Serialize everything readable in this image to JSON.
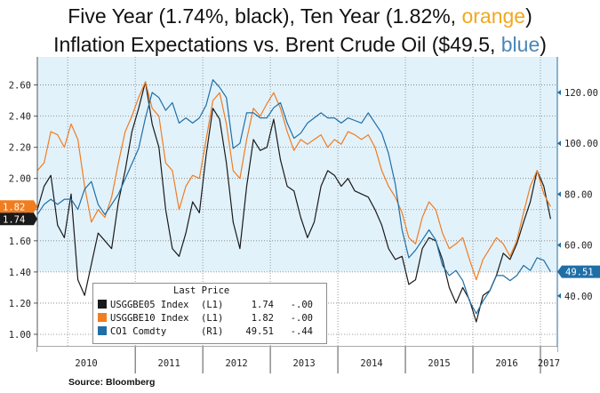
{
  "title": {
    "line1_pre": "Five Year (1.74%, black), Ten Year (1.82%, ",
    "line1_orange": "orange",
    "line1_post": ")",
    "line2_pre": "Inflation Expectations  vs. Brent Crude Oil ($49.5, ",
    "line2_blue": "blue",
    "line2_post": ")"
  },
  "colors": {
    "black": "#1a1a1a",
    "orange": "#f07d20",
    "blue": "#1f6fa6",
    "plot_bg": "#e2f2fb",
    "grid": "#7f7f7f",
    "title_orange": "#f0a820",
    "title_blue": "#4a86b8"
  },
  "source": "Source: Bloomberg",
  "legend": {
    "title": "Last Price",
    "rows": [
      {
        "name": "USGGBE05 Index",
        "axis": "(L1)",
        "last": "1.74",
        "change": "-.00",
        "color": "black"
      },
      {
        "name": "USGGBE10 Index",
        "axis": "(L1)",
        "last": "1.82",
        "change": "-.00",
        "color": "orange"
      },
      {
        "name": "CO1 Comdty",
        "axis": "(R1)",
        "last": "49.51",
        "change": "-.44",
        "color": "blue"
      }
    ]
  },
  "chart_data": {
    "type": "line",
    "x_labels": [
      "2010",
      "2011",
      "2012",
      "2013",
      "2014",
      "2015",
      "2016",
      "2017"
    ],
    "y_left": {
      "ticks": [
        "1.00",
        "1.20",
        "1.40",
        "1.60",
        "1.80",
        "2.00",
        "2.20",
        "2.40",
        "2.60"
      ],
      "range": [
        0.92,
        2.78
      ]
    },
    "y_right": {
      "ticks": [
        "40.00",
        "60.00",
        "80.00",
        "100.00",
        "120.00"
      ],
      "range": [
        20,
        134
      ]
    },
    "last_value_tags": [
      {
        "text": "1.82",
        "axis": "left",
        "value": 1.82,
        "color": "orange"
      },
      {
        "text": "1.74",
        "axis": "left",
        "value": 1.74,
        "color": "black"
      },
      {
        "text": "49.51",
        "axis": "right",
        "value": 49.51,
        "color": "blue"
      }
    ],
    "x_range": [
      2009.55,
      2017.25
    ],
    "series": [
      {
        "name": "USGGBE05 Index",
        "color": "black",
        "axis": "left",
        "x": [
          2009.55,
          2009.65,
          2009.75,
          2009.85,
          2009.95,
          2010.05,
          2010.15,
          2010.25,
          2010.35,
          2010.45,
          2010.55,
          2010.65,
          2010.75,
          2010.85,
          2010.95,
          2011.05,
          2011.15,
          2011.25,
          2011.35,
          2011.45,
          2011.55,
          2011.65,
          2011.75,
          2011.85,
          2011.95,
          2012.05,
          2012.15,
          2012.25,
          2012.35,
          2012.45,
          2012.55,
          2012.65,
          2012.75,
          2012.85,
          2012.95,
          2013.05,
          2013.15,
          2013.25,
          2013.35,
          2013.45,
          2013.55,
          2013.65,
          2013.75,
          2013.85,
          2013.95,
          2014.05,
          2014.15,
          2014.25,
          2014.35,
          2014.45,
          2014.55,
          2014.65,
          2014.75,
          2014.85,
          2014.95,
          2015.05,
          2015.15,
          2015.25,
          2015.35,
          2015.45,
          2015.55,
          2015.65,
          2015.75,
          2015.85,
          2015.95,
          2016.05,
          2016.15,
          2016.25,
          2016.35,
          2016.45,
          2016.55,
          2016.65,
          2016.75,
          2016.85,
          2016.95,
          2017.05,
          2017.15
        ],
        "values": [
          1.8,
          1.95,
          2.02,
          1.7,
          1.62,
          1.9,
          1.35,
          1.25,
          1.45,
          1.65,
          1.6,
          1.55,
          1.85,
          2.05,
          2.3,
          2.45,
          2.62,
          2.35,
          2.2,
          1.8,
          1.55,
          1.5,
          1.65,
          1.85,
          1.78,
          2.15,
          2.45,
          2.38,
          2.1,
          1.72,
          1.55,
          1.95,
          2.25,
          2.18,
          2.2,
          2.38,
          2.12,
          1.95,
          1.92,
          1.75,
          1.62,
          1.72,
          1.95,
          2.05,
          2.02,
          1.95,
          2.0,
          1.92,
          1.9,
          1.88,
          1.8,
          1.7,
          1.55,
          1.48,
          1.5,
          1.32,
          1.35,
          1.55,
          1.62,
          1.6,
          1.48,
          1.3,
          1.2,
          1.3,
          1.22,
          1.08,
          1.25,
          1.28,
          1.38,
          1.52,
          1.48,
          1.58,
          1.72,
          1.85,
          2.05,
          1.95,
          1.74
        ]
      },
      {
        "name": "USGGBE10 Index",
        "color": "orange",
        "axis": "left",
        "x": [
          2009.55,
          2009.65,
          2009.75,
          2009.85,
          2009.95,
          2010.05,
          2010.15,
          2010.25,
          2010.35,
          2010.45,
          2010.55,
          2010.65,
          2010.75,
          2010.85,
          2010.95,
          2011.05,
          2011.15,
          2011.25,
          2011.35,
          2011.45,
          2011.55,
          2011.65,
          2011.75,
          2011.85,
          2011.95,
          2012.05,
          2012.15,
          2012.25,
          2012.35,
          2012.45,
          2012.55,
          2012.65,
          2012.75,
          2012.85,
          2012.95,
          2013.05,
          2013.15,
          2013.25,
          2013.35,
          2013.45,
          2013.55,
          2013.65,
          2013.75,
          2013.85,
          2013.95,
          2014.05,
          2014.15,
          2014.25,
          2014.35,
          2014.45,
          2014.55,
          2014.65,
          2014.75,
          2014.85,
          2014.95,
          2015.05,
          2015.15,
          2015.25,
          2015.35,
          2015.45,
          2015.55,
          2015.65,
          2015.75,
          2015.85,
          2015.95,
          2016.05,
          2016.15,
          2016.25,
          2016.35,
          2016.45,
          2016.55,
          2016.65,
          2016.75,
          2016.85,
          2016.95,
          2017.05,
          2017.15
        ],
        "values": [
          2.05,
          2.1,
          2.3,
          2.28,
          2.2,
          2.35,
          2.25,
          1.95,
          1.72,
          1.8,
          1.75,
          1.88,
          2.1,
          2.3,
          2.4,
          2.52,
          2.62,
          2.45,
          2.4,
          2.1,
          2.05,
          1.8,
          1.95,
          2.02,
          2.0,
          2.25,
          2.5,
          2.55,
          2.35,
          2.05,
          2.0,
          2.25,
          2.45,
          2.4,
          2.48,
          2.55,
          2.45,
          2.3,
          2.18,
          2.25,
          2.22,
          2.25,
          2.28,
          2.2,
          2.25,
          2.22,
          2.3,
          2.28,
          2.25,
          2.28,
          2.2,
          2.05,
          1.95,
          1.88,
          1.78,
          1.62,
          1.58,
          1.75,
          1.85,
          1.8,
          1.65,
          1.55,
          1.58,
          1.62,
          1.48,
          1.35,
          1.48,
          1.55,
          1.62,
          1.58,
          1.5,
          1.6,
          1.78,
          1.95,
          2.05,
          1.9,
          1.82
        ]
      },
      {
        "name": "CO1 Comdty",
        "color": "blue",
        "axis": "right",
        "x": [
          2009.55,
          2009.65,
          2009.75,
          2009.85,
          2009.95,
          2010.05,
          2010.15,
          2010.25,
          2010.35,
          2010.45,
          2010.55,
          2010.65,
          2010.75,
          2010.85,
          2010.95,
          2011.05,
          2011.15,
          2011.25,
          2011.35,
          2011.45,
          2011.55,
          2011.65,
          2011.75,
          2011.85,
          2011.95,
          2012.05,
          2012.15,
          2012.25,
          2012.35,
          2012.45,
          2012.55,
          2012.65,
          2012.75,
          2012.85,
          2012.95,
          2013.05,
          2013.15,
          2013.25,
          2013.35,
          2013.45,
          2013.55,
          2013.65,
          2013.75,
          2013.85,
          2013.95,
          2014.05,
          2014.15,
          2014.25,
          2014.35,
          2014.45,
          2014.55,
          2014.65,
          2014.75,
          2014.85,
          2014.95,
          2015.05,
          2015.15,
          2015.25,
          2015.35,
          2015.45,
          2015.55,
          2015.65,
          2015.75,
          2015.85,
          2015.95,
          2016.05,
          2016.15,
          2016.25,
          2016.35,
          2016.45,
          2016.55,
          2016.65,
          2016.75,
          2016.85,
          2016.95,
          2017.05,
          2017.15
        ],
        "values": [
          72,
          76,
          78,
          76,
          78,
          78,
          74,
          82,
          85,
          76,
          72,
          76,
          80,
          86,
          92,
          98,
          110,
          120,
          118,
          113,
          116,
          108,
          110,
          108,
          110,
          115,
          125,
          122,
          118,
          98,
          100,
          112,
          112,
          110,
          110,
          114,
          116,
          108,
          102,
          104,
          108,
          110,
          112,
          110,
          110,
          108,
          110,
          109,
          108,
          112,
          108,
          104,
          96,
          84,
          66,
          55,
          58,
          62,
          66,
          62,
          52,
          48,
          50,
          46,
          38,
          33,
          38,
          42,
          48,
          48,
          46,
          48,
          52,
          50,
          55,
          54,
          49.5
        ]
      }
    ]
  }
}
